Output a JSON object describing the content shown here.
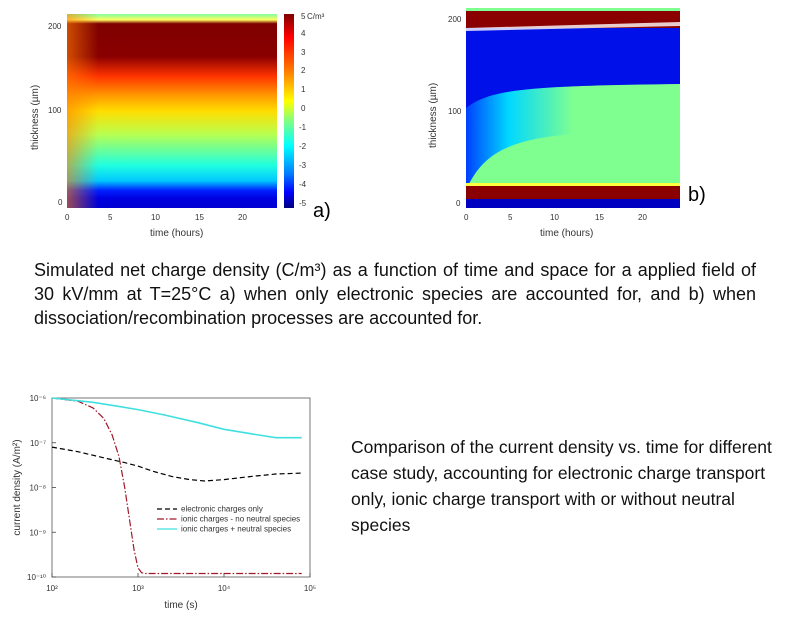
{
  "chart_data": [
    {
      "type": "heatmap",
      "panel_label": "a)",
      "xlabel": "time (hours)",
      "ylabel": "thickness (µm)",
      "x_ticks": [
        "0",
        "5",
        "10",
        "15",
        "20"
      ],
      "y_ticks": [
        "0",
        "100",
        "200"
      ],
      "xlim": [
        0,
        24
      ],
      "ylim": [
        0,
        210
      ],
      "colorbar": {
        "unit": "C/m³",
        "ticks": [
          "5",
          "4",
          "3",
          "2",
          "1",
          "0",
          "-1",
          "-2",
          "-3",
          "-4",
          "-5"
        ],
        "range": [
          -5,
          5
        ],
        "colors": [
          "#00007f",
          "#0000ff",
          "#007fff",
          "#00ffff",
          "#7fff7f",
          "#ffff00",
          "#ff7f00",
          "#ff0000",
          "#7f0000"
        ]
      }
    },
    {
      "type": "heatmap",
      "panel_label": "b)",
      "xlabel": "time (hours)",
      "ylabel": "thickness (µm)",
      "x_ticks": [
        "0",
        "5",
        "10",
        "15",
        "20"
      ],
      "y_ticks": [
        "0",
        "100",
        "200"
      ],
      "xlim": [
        0,
        24
      ],
      "ylim": [
        0,
        210
      ]
    },
    {
      "type": "line",
      "xlabel": "time (s)",
      "ylabel": "current density (A/m²)",
      "x_scale": "log",
      "y_scale": "log",
      "xlim": [
        100,
        100000
      ],
      "ylim": [
        1e-10,
        1e-06
      ],
      "x_ticks": [
        "10²",
        "10³",
        "10⁴",
        "10⁵"
      ],
      "y_ticks": [
        "10⁻¹⁰",
        "10⁻⁹",
        "10⁻⁸",
        "10⁻⁷",
        "10⁻⁶"
      ],
      "legend_position": "center",
      "series": [
        {
          "name": "electronic charges only",
          "color": "#000000",
          "dash": "dash",
          "x": [
            100,
            200,
            400,
            700,
            1000,
            1500,
            2500,
            4000,
            6000,
            10000,
            20000,
            40000,
            80000
          ],
          "y": [
            8e-08,
            6.3e-08,
            4.6e-08,
            3.6e-08,
            3e-08,
            2.3e-08,
            1.75e-08,
            1.5e-08,
            1.4e-08,
            1.5e-08,
            1.75e-08,
            2e-08,
            2.1e-08
          ]
        },
        {
          "name": "ionic charges - no neutral species",
          "color": "#a0182a",
          "dash": "dashdot",
          "x": [
            100,
            200,
            300,
            400,
            500,
            600,
            700,
            800,
            900,
            1000,
            1100,
            1200,
            2000,
            5000,
            10000,
            80000
          ],
          "y": [
            1e-06,
            8.5e-07,
            6e-07,
            3.5e-07,
            1.5e-07,
            5e-08,
            1e-08,
            1.8e-09,
            4e-10,
            1.6e-10,
            1.25e-10,
            1.2e-10,
            1.2e-10,
            1.2e-10,
            1.2e-10,
            1.2e-10
          ]
        },
        {
          "name": "ionic charges + neutral species",
          "color": "#40e0e0",
          "dash": "solid",
          "x": [
            100,
            300,
            600,
            1000,
            2000,
            5000,
            10000,
            20000,
            40000,
            60000,
            80000
          ],
          "y": [
            1e-06,
            8e-07,
            6.5e-07,
            5.5e-07,
            4.2e-07,
            2.8e-07,
            2e-07,
            1.6e-07,
            1.3e-07,
            1.3e-07,
            1.3e-07
          ]
        }
      ]
    }
  ],
  "captions": {
    "figure1": "Simulated net charge density (C/m³) as a function of time and space for a applied field of 30 kV/mm at T=25°C a) when only electronic species are accounted for, and b) when dissociation/recombination processes are accounted for.",
    "figure2": "Comparison of the current density vs. time for different case study, accounting for electronic charge transport only, ionic charge transport with or without neutral species"
  }
}
